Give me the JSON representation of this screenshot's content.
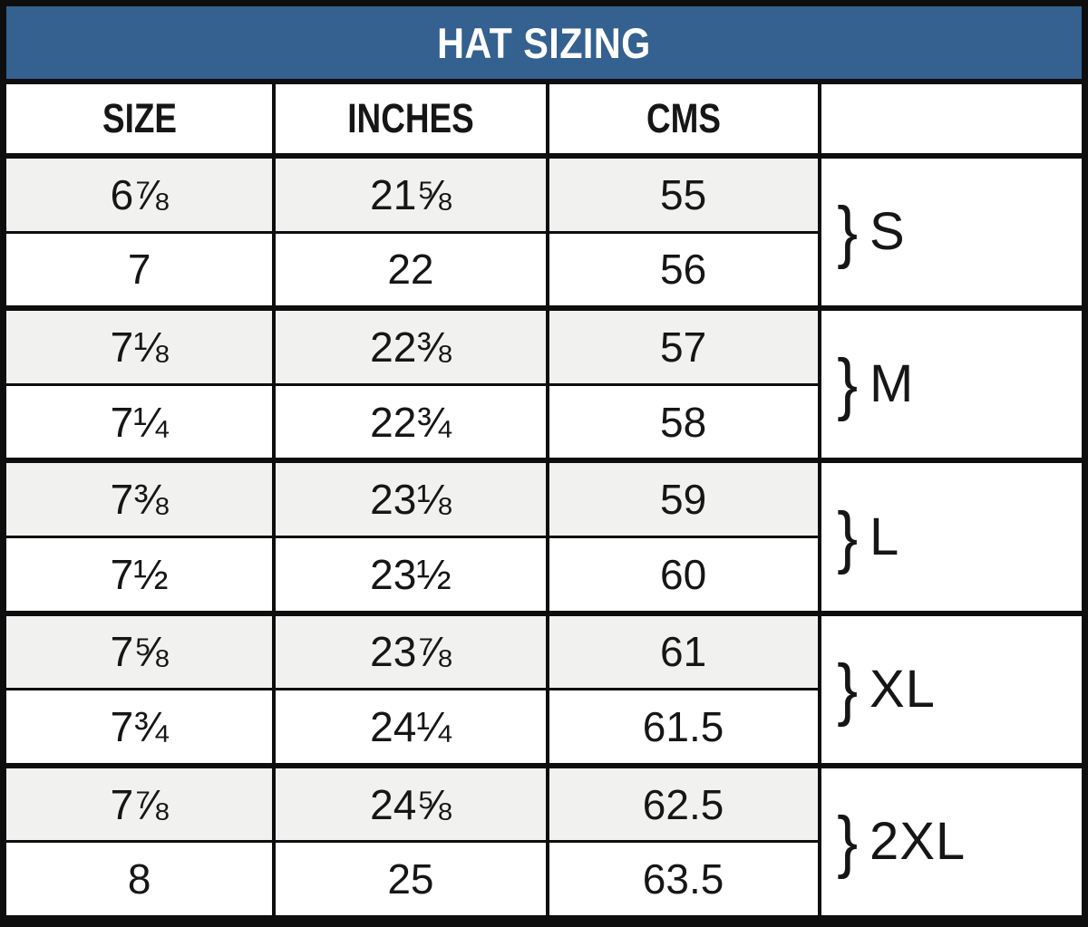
{
  "title": "HAT SIZING",
  "table": {
    "headers": {
      "size": "SIZE",
      "inches": "INCHES",
      "cms": "CMS",
      "group": ""
    },
    "rows": [
      {
        "size": "6⅞",
        "inches": "21⅝",
        "cms": "55"
      },
      {
        "size": "7",
        "inches": "22",
        "cms": "56"
      },
      {
        "size": "7⅛",
        "inches": "22⅜",
        "cms": "57"
      },
      {
        "size": "7¼",
        "inches": "22¾",
        "cms": "58"
      },
      {
        "size": "7⅜",
        "inches": "23⅛",
        "cms": "59"
      },
      {
        "size": "7½",
        "inches": "23½",
        "cms": "60"
      },
      {
        "size": "7⅝",
        "inches": "23⅞",
        "cms": "61"
      },
      {
        "size": "7¾",
        "inches": "24¼",
        "cms": "61.5"
      },
      {
        "size": "7⅞",
        "inches": "24⅝",
        "cms": "62.5"
      },
      {
        "size": "8",
        "inches": "25",
        "cms": "63.5"
      }
    ],
    "groups": [
      {
        "brace": "}",
        "label": "S"
      },
      {
        "brace": "}",
        "label": "M"
      },
      {
        "brace": "}",
        "label": "L"
      },
      {
        "brace": "}",
        "label": "XL"
      },
      {
        "brace": "}",
        "label": "2XL"
      }
    ]
  },
  "colors": {
    "title_bg": "#34618f",
    "title_text": "#ffffff",
    "stripe_bg": "#f1f1ef",
    "border": "#0e0e0e",
    "text": "#161616"
  }
}
